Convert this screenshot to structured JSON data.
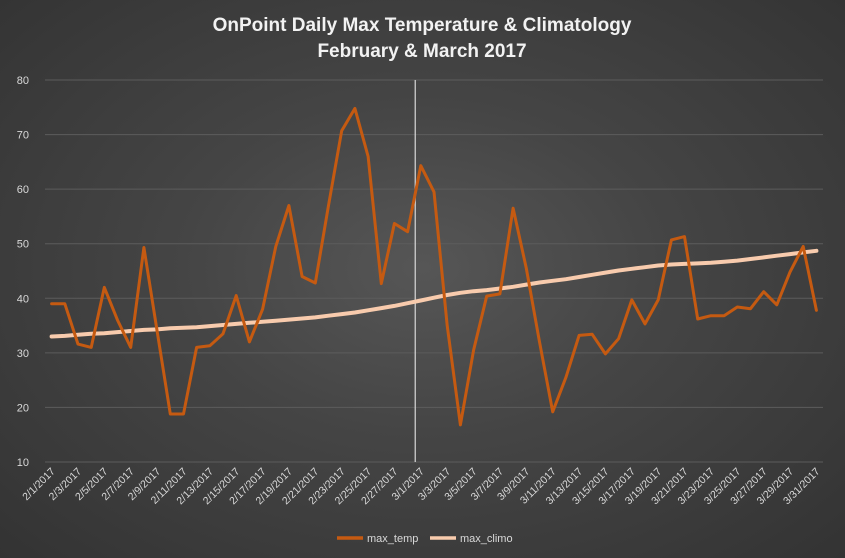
{
  "chart_data": {
    "type": "line",
    "title": "OnPoint Daily Max Temperature & Climatology",
    "subtitle": "February & March 2017",
    "xlabel": "",
    "ylabel": "",
    "ylim": [
      10,
      80
    ],
    "yticks": [
      "10",
      "20",
      "30",
      "40",
      "50",
      "60",
      "70",
      "80"
    ],
    "grid": true,
    "legend_position": "bottom",
    "marker_date": "3/1/2017",
    "colors": {
      "max_temp": "#c55a11",
      "max_climo": "#f8cbad",
      "marker": "#d9d9d9",
      "grid": "#5c5c5c"
    },
    "x": [
      "2/1/2017",
      "2/2/2017",
      "2/3/2017",
      "2/4/2017",
      "2/5/2017",
      "2/6/2017",
      "2/7/2017",
      "2/8/2017",
      "2/9/2017",
      "2/10/2017",
      "2/11/2017",
      "2/12/2017",
      "2/13/2017",
      "2/14/2017",
      "2/15/2017",
      "2/16/2017",
      "2/17/2017",
      "2/18/2017",
      "2/19/2017",
      "2/20/2017",
      "2/21/2017",
      "2/22/2017",
      "2/23/2017",
      "2/24/2017",
      "2/25/2017",
      "2/26/2017",
      "2/27/2017",
      "2/28/2017",
      "3/1/2017",
      "3/2/2017",
      "3/3/2017",
      "3/4/2017",
      "3/5/2017",
      "3/6/2017",
      "3/7/2017",
      "3/8/2017",
      "3/9/2017",
      "3/10/2017",
      "3/11/2017",
      "3/12/2017",
      "3/13/2017",
      "3/14/2017",
      "3/15/2017",
      "3/16/2017",
      "3/17/2017",
      "3/18/2017",
      "3/19/2017",
      "3/20/2017",
      "3/21/2017",
      "3/22/2017",
      "3/23/2017",
      "3/24/2017",
      "3/25/2017",
      "3/26/2017",
      "3/27/2017",
      "3/28/2017",
      "3/29/2017",
      "3/30/2017",
      "3/31/2017"
    ],
    "xticks": [
      "2/1/2017",
      "2/3/2017",
      "2/5/2017",
      "2/7/2017",
      "2/9/2017",
      "2/11/2017",
      "2/13/2017",
      "2/15/2017",
      "2/17/2017",
      "2/19/2017",
      "2/21/2017",
      "2/23/2017",
      "2/25/2017",
      "2/27/2017",
      "3/1/2017",
      "3/3/2017",
      "3/5/2017",
      "3/7/2017",
      "3/9/2017",
      "3/11/2017",
      "3/13/2017",
      "3/15/2017",
      "3/17/2017",
      "3/19/2017",
      "3/21/2017",
      "3/23/2017",
      "3/25/2017",
      "3/27/2017",
      "3/29/2017",
      "3/31/2017"
    ],
    "series": [
      {
        "name": "max_temp",
        "values": [
          39,
          39,
          31.6,
          31,
          42,
          36,
          31,
          49.3,
          34,
          18.8,
          18.8,
          31,
          31.3,
          33.5,
          40.5,
          32,
          38,
          49.5,
          57,
          44,
          42.8,
          57,
          70.7,
          74.8,
          66,
          42.7,
          53.7,
          52.2,
          64.3,
          59.5,
          35,
          16.8,
          30.5,
          40.4,
          40.8,
          56.5,
          45.5,
          32,
          19.2,
          25.5,
          33.2,
          33.4,
          29.8,
          32.6,
          39.7,
          35.3,
          39.7,
          50.7,
          51.3,
          36.2,
          36.8,
          36.8,
          38.4,
          38.1,
          41.2,
          38.8,
          44.8,
          49.5,
          37.8
        ]
      },
      {
        "name": "max_climo",
        "values": [
          33,
          33.1,
          33.3,
          33.5,
          33.6,
          33.8,
          34,
          34.2,
          34.3,
          34.5,
          34.6,
          34.7,
          34.9,
          35.1,
          35.3,
          35.5,
          35.7,
          35.9,
          36.1,
          36.3,
          36.5,
          36.8,
          37.1,
          37.4,
          37.8,
          38.2,
          38.6,
          39.1,
          39.6,
          40.1,
          40.6,
          41,
          41.3,
          41.5,
          41.8,
          42.1,
          42.5,
          42.9,
          43.2,
          43.5,
          43.9,
          44.3,
          44.7,
          45.1,
          45.4,
          45.7,
          46,
          46.2,
          46.3,
          46.4,
          46.5,
          46.7,
          46.9,
          47.2,
          47.5,
          47.8,
          48.1,
          48.4,
          48.7
        ]
      }
    ]
  }
}
